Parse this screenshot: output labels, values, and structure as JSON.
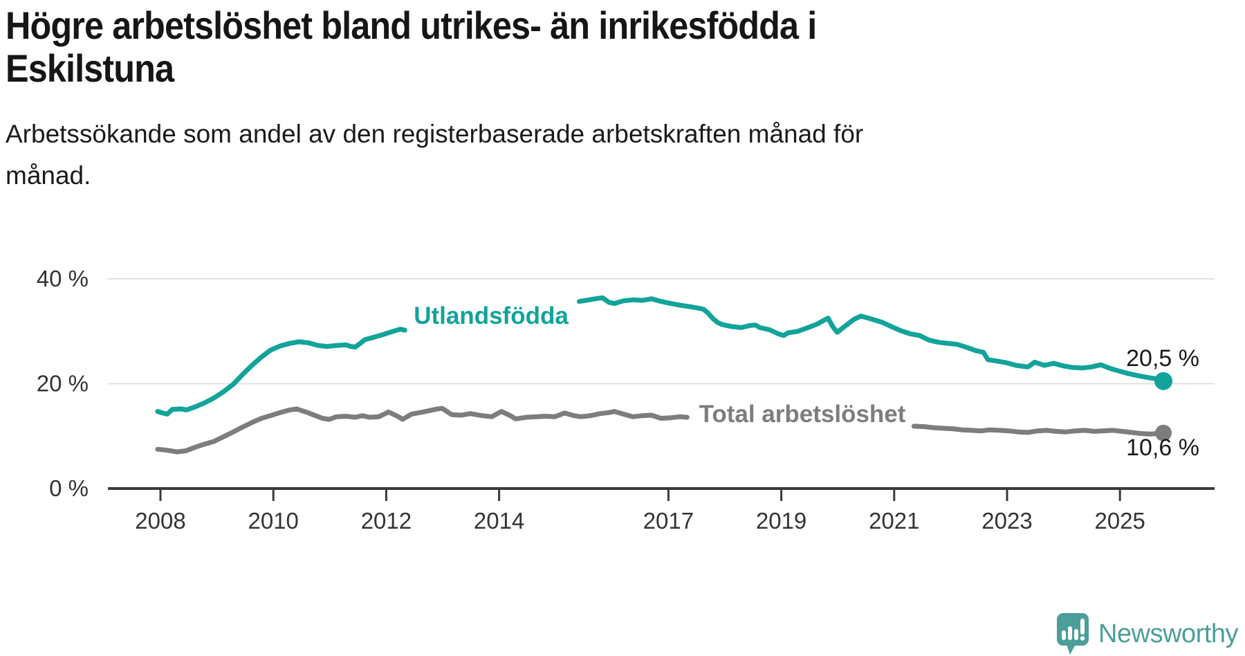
{
  "header": {
    "title_lines": [
      "Högre arbetslöshet bland utrikes- än inrikesfödda i",
      "Eskilstuna"
    ],
    "subtitle_lines": [
      "Arbetssökande som andel av den registerbaserade arbetskraften månad för",
      "månad."
    ]
  },
  "chart_data": {
    "type": "line",
    "title": "Högre arbetslöshet bland utrikes- än inrikesfödda i Eskilstuna",
    "subtitle": "Arbetssökande som andel av den registerbaserade arbetskraften månad för månad.",
    "grid": true,
    "legend_position": "inline-labels-on-lines",
    "x_axis": {
      "ticks": [
        2008,
        2010,
        2012,
        2014,
        2017,
        2019,
        2021,
        2023,
        2025
      ],
      "range": [
        2007.9,
        2026.1
      ]
    },
    "y_axis": {
      "unit": "%",
      "range": [
        0,
        42
      ],
      "ticks": [
        {
          "value": 0,
          "label": "0 %"
        },
        {
          "value": 20,
          "label": "20 %"
        },
        {
          "value": 40,
          "label": "40 %"
        }
      ]
    },
    "series": [
      {
        "name": "Utlandsfödda",
        "color": "#12a39a",
        "end_label": "20,5 %",
        "end_value": 20.5,
        "label_gap_years": [
          2012.34,
          2015.41
        ],
        "points": [
          [
            2007.95,
            14.7
          ],
          [
            2008.04,
            14.4
          ],
          [
            2008.12,
            14.2
          ],
          [
            2008.21,
            15.1
          ],
          [
            2008.37,
            15.2
          ],
          [
            2008.46,
            15.0
          ],
          [
            2008.62,
            15.6
          ],
          [
            2008.79,
            16.4
          ],
          [
            2008.95,
            17.3
          ],
          [
            2009.12,
            18.5
          ],
          [
            2009.29,
            19.9
          ],
          [
            2009.45,
            21.7
          ],
          [
            2009.62,
            23.5
          ],
          [
            2009.79,
            25.1
          ],
          [
            2009.95,
            26.4
          ],
          [
            2010.12,
            27.2
          ],
          [
            2010.29,
            27.7
          ],
          [
            2010.45,
            28.0
          ],
          [
            2010.62,
            27.8
          ],
          [
            2010.79,
            27.3
          ],
          [
            2010.95,
            27.1
          ],
          [
            2011.12,
            27.3
          ],
          [
            2011.29,
            27.4
          ],
          [
            2011.37,
            27.1
          ],
          [
            2011.45,
            27.0
          ],
          [
            2011.54,
            27.7
          ],
          [
            2011.62,
            28.4
          ],
          [
            2011.79,
            28.9
          ],
          [
            2011.95,
            29.4
          ],
          [
            2012.12,
            30.0
          ],
          [
            2012.25,
            30.4
          ],
          [
            2012.33,
            30.2
          ],
          [
            2015.42,
            35.7
          ],
          [
            2015.54,
            35.9
          ],
          [
            2015.7,
            36.2
          ],
          [
            2015.83,
            36.4
          ],
          [
            2015.95,
            35.5
          ],
          [
            2016.04,
            35.3
          ],
          [
            2016.2,
            35.8
          ],
          [
            2016.37,
            36.0
          ],
          [
            2016.54,
            35.9
          ],
          [
            2016.7,
            36.2
          ],
          [
            2016.87,
            35.7
          ],
          [
            2017.04,
            35.3
          ],
          [
            2017.2,
            35.0
          ],
          [
            2017.37,
            34.7
          ],
          [
            2017.54,
            34.4
          ],
          [
            2017.62,
            34.2
          ],
          [
            2017.7,
            33.5
          ],
          [
            2017.79,
            32.4
          ],
          [
            2017.87,
            31.7
          ],
          [
            2017.95,
            31.3
          ],
          [
            2018.12,
            30.9
          ],
          [
            2018.29,
            30.7
          ],
          [
            2018.45,
            31.1
          ],
          [
            2018.54,
            31.2
          ],
          [
            2018.62,
            30.7
          ],
          [
            2018.79,
            30.3
          ],
          [
            2018.95,
            29.5
          ],
          [
            2019.04,
            29.2
          ],
          [
            2019.12,
            29.7
          ],
          [
            2019.29,
            30.0
          ],
          [
            2019.45,
            30.6
          ],
          [
            2019.62,
            31.3
          ],
          [
            2019.79,
            32.3
          ],
          [
            2019.83,
            32.5
          ],
          [
            2019.91,
            30.9
          ],
          [
            2019.99,
            29.8
          ],
          [
            2020.12,
            30.9
          ],
          [
            2020.29,
            32.3
          ],
          [
            2020.41,
            32.9
          ],
          [
            2020.58,
            32.4
          ],
          [
            2020.79,
            31.7
          ],
          [
            2020.95,
            30.9
          ],
          [
            2021.12,
            30.1
          ],
          [
            2021.29,
            29.5
          ],
          [
            2021.45,
            29.2
          ],
          [
            2021.62,
            28.3
          ],
          [
            2021.79,
            27.9
          ],
          [
            2021.95,
            27.7
          ],
          [
            2022.12,
            27.5
          ],
          [
            2022.29,
            26.9
          ],
          [
            2022.45,
            26.3
          ],
          [
            2022.58,
            26.0
          ],
          [
            2022.66,
            24.6
          ],
          [
            2022.83,
            24.3
          ],
          [
            2022.99,
            24.0
          ],
          [
            2023.16,
            23.5
          ],
          [
            2023.37,
            23.2
          ],
          [
            2023.49,
            24.1
          ],
          [
            2023.66,
            23.5
          ],
          [
            2023.83,
            23.9
          ],
          [
            2023.99,
            23.4
          ],
          [
            2024.16,
            23.1
          ],
          [
            2024.33,
            23.0
          ],
          [
            2024.49,
            23.2
          ],
          [
            2024.66,
            23.6
          ],
          [
            2024.83,
            22.9
          ],
          [
            2024.99,
            22.4
          ],
          [
            2025.16,
            21.9
          ],
          [
            2025.33,
            21.5
          ],
          [
            2025.49,
            21.2
          ],
          [
            2025.66,
            20.9
          ],
          [
            2025.77,
            20.5
          ]
        ]
      },
      {
        "name": "Total arbetslöshet",
        "color": "#7d7d7d",
        "end_label": "10,6 %",
        "end_value": 10.6,
        "label_gap_years": [
          2017.34,
          2021.34
        ],
        "points": [
          [
            2007.95,
            7.5
          ],
          [
            2008.12,
            7.3
          ],
          [
            2008.29,
            7.0
          ],
          [
            2008.45,
            7.2
          ],
          [
            2008.62,
            7.9
          ],
          [
            2008.79,
            8.5
          ],
          [
            2008.95,
            9.0
          ],
          [
            2009.12,
            9.9
          ],
          [
            2009.29,
            10.8
          ],
          [
            2009.45,
            11.7
          ],
          [
            2009.62,
            12.6
          ],
          [
            2009.79,
            13.4
          ],
          [
            2009.95,
            13.9
          ],
          [
            2010.12,
            14.5
          ],
          [
            2010.29,
            15.0
          ],
          [
            2010.41,
            15.2
          ],
          [
            2010.58,
            14.6
          ],
          [
            2010.7,
            14.1
          ],
          [
            2010.87,
            13.4
          ],
          [
            2010.99,
            13.2
          ],
          [
            2011.12,
            13.7
          ],
          [
            2011.29,
            13.8
          ],
          [
            2011.45,
            13.6
          ],
          [
            2011.58,
            13.9
          ],
          [
            2011.7,
            13.6
          ],
          [
            2011.87,
            13.7
          ],
          [
            2012.04,
            14.6
          ],
          [
            2012.2,
            13.8
          ],
          [
            2012.29,
            13.2
          ],
          [
            2012.45,
            14.2
          ],
          [
            2012.7,
            14.7
          ],
          [
            2012.87,
            15.1
          ],
          [
            2012.99,
            15.3
          ],
          [
            2013.16,
            14.1
          ],
          [
            2013.33,
            14.0
          ],
          [
            2013.49,
            14.3
          ],
          [
            2013.7,
            13.9
          ],
          [
            2013.87,
            13.7
          ],
          [
            2014.04,
            14.7
          ],
          [
            2014.2,
            13.9
          ],
          [
            2014.29,
            13.3
          ],
          [
            2014.49,
            13.6
          ],
          [
            2014.66,
            13.7
          ],
          [
            2014.83,
            13.8
          ],
          [
            2014.99,
            13.7
          ],
          [
            2015.16,
            14.4
          ],
          [
            2015.33,
            13.9
          ],
          [
            2015.45,
            13.7
          ],
          [
            2015.62,
            13.9
          ],
          [
            2015.79,
            14.3
          ],
          [
            2015.95,
            14.5
          ],
          [
            2016.04,
            14.7
          ],
          [
            2016.2,
            14.2
          ],
          [
            2016.37,
            13.7
          ],
          [
            2016.54,
            13.9
          ],
          [
            2016.7,
            14.0
          ],
          [
            2016.87,
            13.4
          ],
          [
            2017.04,
            13.5
          ],
          [
            2017.2,
            13.7
          ],
          [
            2017.33,
            13.6
          ],
          [
            2021.35,
            11.9
          ],
          [
            2021.54,
            11.8
          ],
          [
            2021.7,
            11.6
          ],
          [
            2021.87,
            11.5
          ],
          [
            2022.04,
            11.4
          ],
          [
            2022.2,
            11.2
          ],
          [
            2022.37,
            11.1
          ],
          [
            2022.54,
            11.0
          ],
          [
            2022.7,
            11.2
          ],
          [
            2022.87,
            11.1
          ],
          [
            2023.04,
            11.0
          ],
          [
            2023.2,
            10.8
          ],
          [
            2023.37,
            10.7
          ],
          [
            2023.54,
            11.0
          ],
          [
            2023.7,
            11.1
          ],
          [
            2023.87,
            10.9
          ],
          [
            2024.04,
            10.8
          ],
          [
            2024.2,
            11.0
          ],
          [
            2024.37,
            11.1
          ],
          [
            2024.54,
            10.9
          ],
          [
            2024.7,
            11.0
          ],
          [
            2024.87,
            11.1
          ],
          [
            2025.04,
            10.9
          ],
          [
            2025.2,
            10.7
          ],
          [
            2025.37,
            10.5
          ],
          [
            2025.54,
            10.4
          ],
          [
            2025.66,
            10.5
          ],
          [
            2025.77,
            10.6
          ]
        ]
      }
    ],
    "colors": {
      "grid": "#e0e0e0",
      "axis": "#3a3a3a",
      "tick_text": "#333333",
      "end_label_text": "#1a1a1a"
    }
  },
  "footer": {
    "brand": "Newsworthy",
    "logo_icon": "newsworthy-speech-bubble-chart-icon",
    "brand_color": "#4b9e99"
  }
}
